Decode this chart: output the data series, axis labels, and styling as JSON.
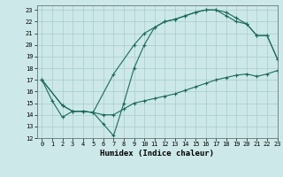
{
  "xlabel": "Humidex (Indice chaleur)",
  "bg_color": "#cde8e8",
  "grid_color": "#a8cccc",
  "line_color": "#1a6b5a",
  "xlim": [
    -0.5,
    23
  ],
  "ylim": [
    12,
    23.4
  ],
  "xticks": [
    0,
    1,
    2,
    3,
    4,
    5,
    6,
    7,
    8,
    9,
    10,
    11,
    12,
    13,
    14,
    15,
    16,
    17,
    18,
    19,
    20,
    21,
    22,
    23
  ],
  "yticks": [
    12,
    13,
    14,
    15,
    16,
    17,
    18,
    19,
    20,
    21,
    22,
    23
  ],
  "line1_x": [
    0,
    1,
    2,
    3,
    4,
    5,
    6,
    7,
    8,
    9,
    10,
    11,
    12,
    13,
    14,
    15,
    16,
    17,
    18,
    19,
    20,
    21,
    22,
    23
  ],
  "line1_y": [
    17.0,
    15.2,
    13.8,
    14.3,
    14.3,
    14.2,
    14.0,
    14.0,
    14.5,
    15.0,
    15.2,
    15.4,
    15.6,
    15.8,
    16.1,
    16.4,
    16.7,
    17.0,
    17.2,
    17.4,
    17.5,
    17.3,
    17.5,
    17.8
  ],
  "line2_x": [
    0,
    2,
    3,
    4,
    5,
    7,
    9,
    10,
    11,
    12,
    13,
    14,
    15,
    16,
    17,
    18,
    19,
    20,
    21,
    22,
    23
  ],
  "line2_y": [
    17.0,
    14.8,
    14.3,
    14.3,
    14.2,
    17.5,
    20.0,
    21.0,
    21.5,
    22.0,
    22.2,
    22.5,
    22.8,
    23.0,
    23.0,
    22.8,
    22.3,
    21.8,
    20.8,
    20.8,
    18.8
  ],
  "line3_x": [
    0,
    2,
    3,
    4,
    5,
    6,
    7,
    8,
    9,
    10,
    11,
    12,
    13,
    14,
    15,
    16,
    17,
    18,
    19,
    20,
    21,
    22,
    23
  ],
  "line3_y": [
    17.0,
    14.8,
    14.3,
    14.3,
    14.2,
    13.2,
    12.2,
    15.0,
    18.0,
    20.0,
    21.5,
    22.0,
    22.2,
    22.5,
    22.8,
    23.0,
    23.0,
    22.5,
    22.0,
    21.8,
    20.8,
    20.8,
    18.8
  ]
}
